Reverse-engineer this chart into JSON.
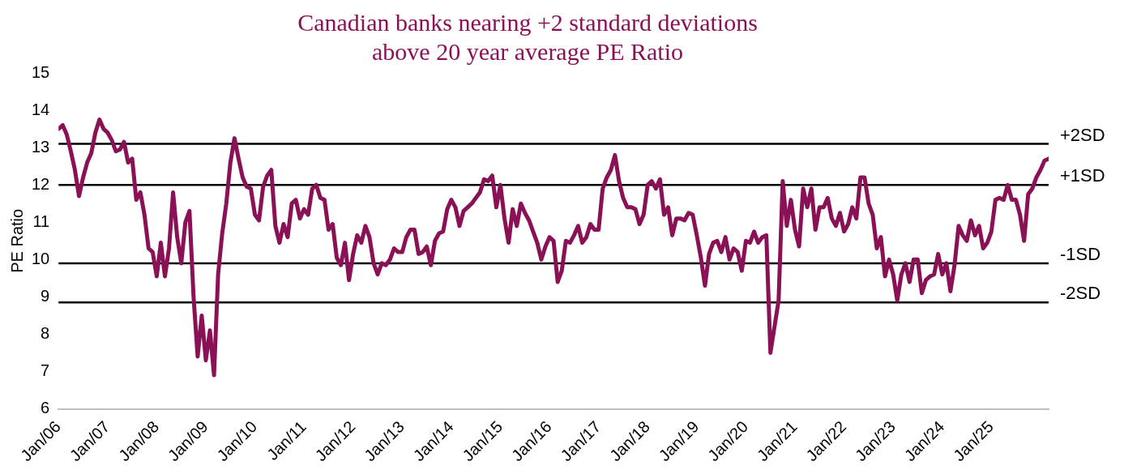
{
  "chart_data": {
    "type": "line",
    "title": "Canadian banks nearing +2 standard deviations\nabove 20 year average PE Ratio",
    "ylabel": "PE Ratio",
    "x": [
      "2006-01",
      "2006-02",
      "2006-03",
      "2006-04",
      "2006-05",
      "2006-06",
      "2006-07",
      "2006-08",
      "2006-09",
      "2006-10",
      "2006-11",
      "2006-12",
      "2007-01",
      "2007-02",
      "2007-03",
      "2007-04",
      "2007-05",
      "2007-06",
      "2007-07",
      "2007-08",
      "2007-09",
      "2007-10",
      "2007-11",
      "2007-12",
      "2008-01",
      "2008-02",
      "2008-03",
      "2008-04",
      "2008-05",
      "2008-06",
      "2008-07",
      "2008-08",
      "2008-09",
      "2008-10",
      "2008-11",
      "2008-12",
      "2009-01",
      "2009-02",
      "2009-03",
      "2009-04",
      "2009-05",
      "2009-06",
      "2009-07",
      "2009-08",
      "2009-09",
      "2009-10",
      "2009-11",
      "2009-12",
      "2010-01",
      "2010-02",
      "2010-03",
      "2010-04",
      "2010-05",
      "2010-06",
      "2010-07",
      "2010-08",
      "2010-09",
      "2010-10",
      "2010-11",
      "2010-12",
      "2011-01",
      "2011-02",
      "2011-03",
      "2011-04",
      "2011-05",
      "2011-06",
      "2011-07",
      "2011-08",
      "2011-09",
      "2011-10",
      "2011-11",
      "2011-12",
      "2012-01",
      "2012-02",
      "2012-03",
      "2012-04",
      "2012-05",
      "2012-06",
      "2012-07",
      "2012-08",
      "2012-09",
      "2012-10",
      "2012-11",
      "2012-12",
      "2013-01",
      "2013-02",
      "2013-03",
      "2013-04",
      "2013-05",
      "2013-06",
      "2013-07",
      "2013-08",
      "2013-09",
      "2013-10",
      "2013-11",
      "2013-12",
      "2014-01",
      "2014-02",
      "2014-03",
      "2014-04",
      "2014-05",
      "2014-06",
      "2014-07",
      "2014-08",
      "2014-09",
      "2014-10",
      "2014-11",
      "2014-12",
      "2015-01",
      "2015-02",
      "2015-03",
      "2015-04",
      "2015-05",
      "2015-06",
      "2015-07",
      "2015-08",
      "2015-09",
      "2015-10",
      "2015-11",
      "2015-12",
      "2016-01",
      "2016-02",
      "2016-03",
      "2016-04",
      "2016-05",
      "2016-06",
      "2016-07",
      "2016-08",
      "2016-09",
      "2016-10",
      "2016-11",
      "2016-12",
      "2017-01",
      "2017-02",
      "2017-03",
      "2017-04",
      "2017-05",
      "2017-06",
      "2017-07",
      "2017-08",
      "2017-09",
      "2017-10",
      "2017-11",
      "2017-12",
      "2018-01",
      "2018-02",
      "2018-03",
      "2018-04",
      "2018-05",
      "2018-06",
      "2018-07",
      "2018-08",
      "2018-09",
      "2018-10",
      "2018-11",
      "2018-12",
      "2019-01",
      "2019-02",
      "2019-03",
      "2019-04",
      "2019-05",
      "2019-06",
      "2019-07",
      "2019-08",
      "2019-09",
      "2019-10",
      "2019-11",
      "2019-12",
      "2020-01",
      "2020-02",
      "2020-03",
      "2020-04",
      "2020-05",
      "2020-06",
      "2020-07",
      "2020-08",
      "2020-09",
      "2020-10",
      "2020-11",
      "2020-12",
      "2021-01",
      "2021-02",
      "2021-03",
      "2021-04",
      "2021-05",
      "2021-06",
      "2021-07",
      "2021-08",
      "2021-09",
      "2021-10",
      "2021-11",
      "2021-12",
      "2022-01",
      "2022-02",
      "2022-03",
      "2022-04",
      "2022-05",
      "2022-06",
      "2022-07",
      "2022-08",
      "2022-09",
      "2022-10",
      "2022-11",
      "2022-12",
      "2023-01",
      "2023-02",
      "2023-03",
      "2023-04",
      "2023-05",
      "2023-06",
      "2023-07",
      "2023-08",
      "2023-09",
      "2023-10",
      "2023-11",
      "2023-12",
      "2024-01",
      "2024-02",
      "2024-03",
      "2024-04",
      "2024-05",
      "2024-06",
      "2024-07",
      "2024-08",
      "2024-09",
      "2024-10",
      "2024-11",
      "2024-12",
      "2025-01",
      "2025-02",
      "2025-03",
      "2025-04",
      "2025-05",
      "2025-06",
      "2025-07",
      "2025-08",
      "2025-09",
      "2025-10",
      "2025-11",
      "2025-12",
      "2026-01",
      "2026-02",
      "2026-03"
    ],
    "series": [
      {
        "color": "#8b1157",
        "values": [
          13.5,
          13.6,
          13.35,
          12.9,
          12.4,
          11.7,
          12.2,
          12.6,
          12.85,
          13.4,
          13.75,
          13.5,
          13.4,
          13.2,
          12.9,
          12.95,
          13.15,
          12.6,
          12.7,
          11.6,
          11.8,
          11.2,
          10.3,
          10.2,
          9.55,
          10.45,
          9.55,
          10.3,
          11.8,
          10.6,
          9.9,
          11.0,
          11.3,
          9.0,
          7.4,
          8.5,
          7.3,
          8.1,
          6.9,
          9.6,
          10.7,
          11.5,
          12.6,
          13.25,
          12.7,
          12.2,
          11.95,
          11.9,
          11.2,
          11.05,
          11.95,
          12.25,
          12.4,
          10.9,
          10.45,
          10.95,
          10.6,
          11.5,
          11.6,
          11.1,
          11.35,
          11.2,
          11.9,
          12.0,
          11.65,
          11.6,
          10.8,
          10.95,
          10.05,
          9.85,
          10.45,
          9.45,
          10.15,
          10.65,
          10.45,
          10.9,
          10.6,
          9.9,
          9.6,
          9.9,
          9.85,
          10.0,
          10.3,
          10.2,
          10.2,
          10.6,
          10.8,
          10.8,
          10.15,
          10.2,
          10.35,
          9.85,
          10.5,
          10.7,
          10.75,
          11.35,
          11.6,
          11.4,
          10.9,
          11.3,
          11.4,
          11.5,
          11.65,
          11.8,
          12.15,
          12.1,
          12.25,
          11.4,
          12.0,
          11.1,
          10.45,
          11.35,
          10.9,
          11.5,
          11.25,
          11.05,
          10.75,
          10.45,
          10.0,
          10.35,
          10.6,
          10.5,
          9.4,
          9.7,
          10.5,
          10.45,
          10.65,
          10.9,
          10.45,
          10.6,
          10.95,
          10.8,
          10.8,
          11.9,
          12.2,
          12.4,
          12.8,
          12.1,
          11.65,
          11.4,
          11.4,
          11.35,
          10.95,
          11.2,
          12.0,
          12.1,
          11.9,
          12.15,
          11.2,
          11.4,
          10.65,
          11.1,
          11.1,
          11.05,
          11.25,
          11.2,
          10.65,
          10.05,
          9.3,
          10.15,
          10.45,
          10.5,
          10.2,
          10.6,
          10.0,
          10.3,
          10.2,
          9.7,
          10.5,
          10.45,
          10.75,
          10.45,
          10.6,
          10.65,
          7.5,
          8.2,
          8.9,
          12.1,
          10.9,
          11.6,
          10.8,
          10.35,
          11.9,
          11.4,
          11.9,
          10.8,
          11.4,
          11.4,
          11.65,
          11.1,
          10.9,
          11.25,
          10.75,
          10.95,
          11.4,
          11.1,
          12.2,
          12.2,
          11.5,
          11.2,
          10.3,
          10.6,
          9.55,
          10.0,
          9.6,
          8.9,
          9.6,
          9.9,
          9.4,
          10.0,
          10.0,
          9.1,
          9.45,
          9.55,
          9.6,
          10.15,
          9.6,
          9.9,
          9.15,
          9.85,
          10.9,
          10.65,
          10.5,
          11.05,
          10.65,
          10.9,
          10.3,
          10.45,
          10.75,
          11.6,
          11.65,
          11.6,
          12.0,
          11.6,
          11.6,
          11.2,
          10.5,
          11.75,
          11.9,
          12.2,
          12.4,
          12.65,
          12.7
        ]
      }
    ],
    "xlim": [
      "2006-01",
      "2026-03"
    ],
    "xticks": [
      {
        "value": "2006-01",
        "label": "Jan/06"
      },
      {
        "value": "2007-01",
        "label": "Jan/07"
      },
      {
        "value": "2008-01",
        "label": "Jan/08"
      },
      {
        "value": "2009-01",
        "label": "Jan/09"
      },
      {
        "value": "2010-01",
        "label": "Jan/10"
      },
      {
        "value": "2011-01",
        "label": "Jan/11"
      },
      {
        "value": "2012-01",
        "label": "Jan/12"
      },
      {
        "value": "2013-01",
        "label": "Jan/13"
      },
      {
        "value": "2014-01",
        "label": "Jan/14"
      },
      {
        "value": "2015-01",
        "label": "Jan/15"
      },
      {
        "value": "2016-01",
        "label": "Jan/16"
      },
      {
        "value": "2017-01",
        "label": "Jan/17"
      },
      {
        "value": "2018-01",
        "label": "Jan/18"
      },
      {
        "value": "2019-01",
        "label": "Jan/19"
      },
      {
        "value": "2020-01",
        "label": "Jan/20"
      },
      {
        "value": "2021-01",
        "label": "Jan/21"
      },
      {
        "value": "2022-01",
        "label": "Jan/22"
      },
      {
        "value": "2023-01",
        "label": "Jan/23"
      },
      {
        "value": "2024-01",
        "label": "Jan/24"
      },
      {
        "value": "2025-01",
        "label": "Jan/25"
      }
    ],
    "ylim": [
      6,
      15
    ],
    "yticks": [
      6,
      7,
      8,
      9,
      10,
      11,
      12,
      13,
      14,
      15
    ],
    "ref_lines": [
      {
        "axis": "y",
        "value": 13.1,
        "label": "+2SD",
        "color": "#000000"
      },
      {
        "axis": "y",
        "value": 12.0,
        "label": "+1SD",
        "color": "#000000"
      },
      {
        "axis": "y",
        "value": 9.9,
        "label": "-1SD",
        "color": "#000000"
      },
      {
        "axis": "y",
        "value": 8.85,
        "label": "-2SD",
        "color": "#000000"
      }
    ],
    "grid": false,
    "legend": false,
    "marker": "none",
    "line_style": "solid"
  }
}
